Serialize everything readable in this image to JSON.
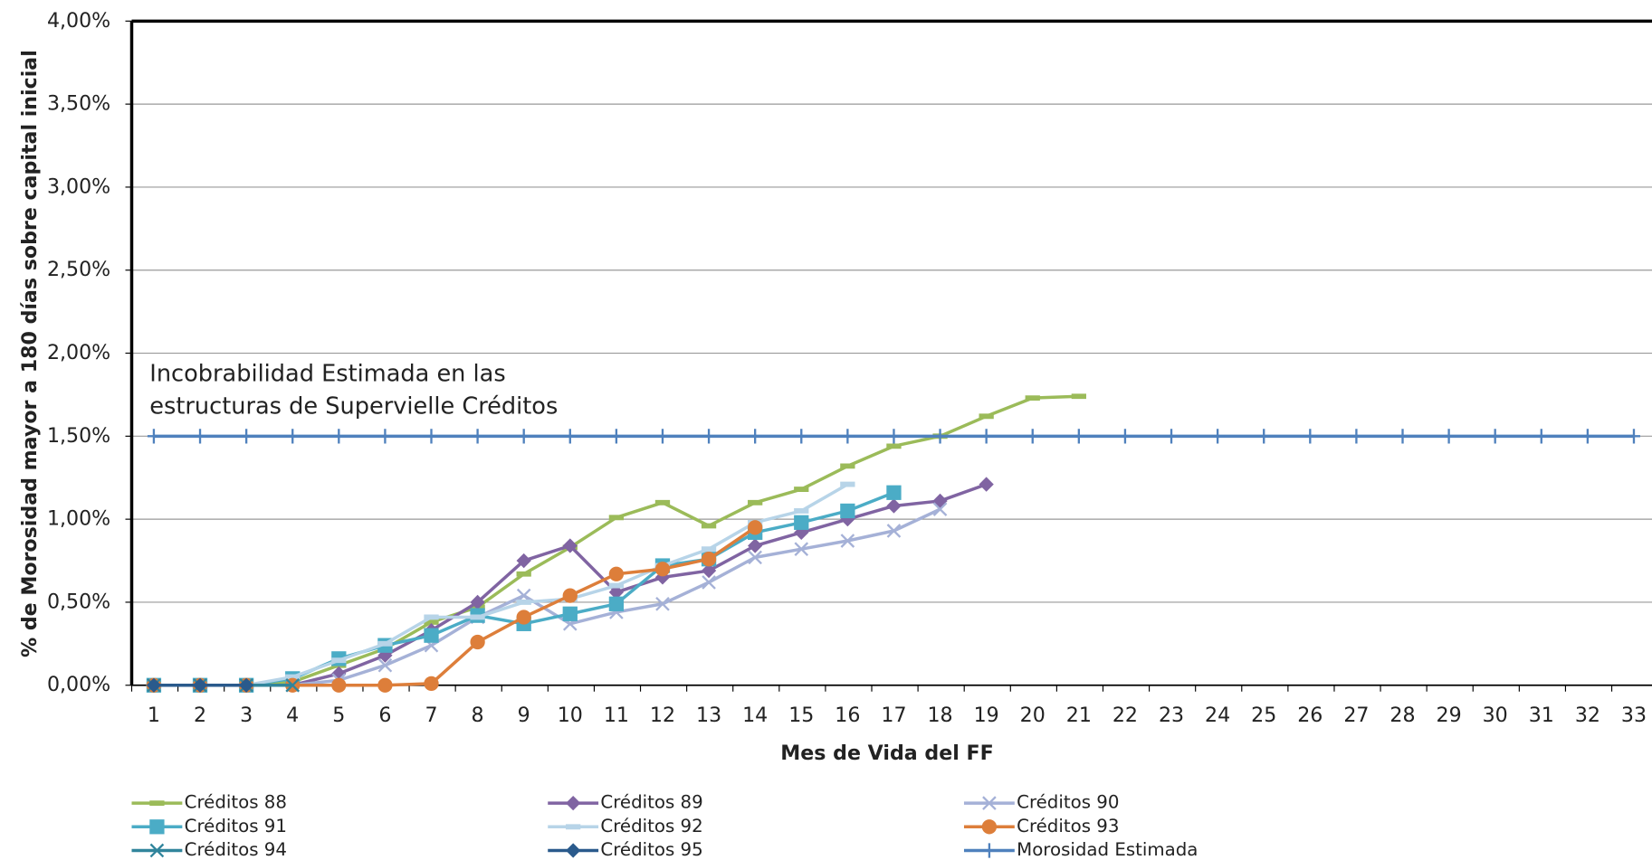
{
  "chart_data": {
    "type": "line",
    "ylabel": "% de Morosidad mayor a 180 días sobre capital inicial",
    "xlabel": "Mes de Vida del FF",
    "annotation": [
      "Incobrabilidad Estimada en las",
      "estructuras de Supervielle Créditos"
    ],
    "categories": [
      1,
      2,
      3,
      4,
      5,
      6,
      7,
      8,
      9,
      10,
      11,
      12,
      13,
      14,
      15,
      16,
      17,
      18,
      19,
      20,
      21,
      22,
      23,
      24,
      25,
      26,
      27,
      28,
      29,
      30,
      31,
      32,
      33
    ],
    "ylim": [
      0,
      4
    ],
    "yticks": [
      {
        "value": 0,
        "label": "0,00%"
      },
      {
        "value": 0.5,
        "label": "0,50%"
      },
      {
        "value": 1,
        "label": "1,00%"
      },
      {
        "value": 1.5,
        "label": "1,50%"
      },
      {
        "value": 2,
        "label": "2,00%"
      },
      {
        "value": 2.5,
        "label": "2,50%"
      },
      {
        "value": 3,
        "label": "3,00%"
      },
      {
        "value": 3.5,
        "label": "3,50%"
      },
      {
        "value": 4,
        "label": "4,00%"
      }
    ],
    "grid": true,
    "series": [
      {
        "name": "Créditos 88",
        "color": "#9bbb59",
        "marker": "dash",
        "values": [
          0,
          0,
          0,
          0.02,
          0.12,
          0.22,
          0.38,
          0.47,
          0.67,
          0.83,
          1.01,
          1.1,
          0.96,
          1.1,
          1.18,
          1.32,
          1.44,
          1.5,
          1.62,
          1.73,
          1.74,
          null,
          null,
          null,
          null,
          null,
          null,
          null,
          null,
          null,
          null,
          null,
          null
        ]
      },
      {
        "name": "Créditos 89",
        "color": "#8064a2",
        "marker": "diamond",
        "values": [
          0,
          0,
          0,
          0,
          0.07,
          0.18,
          0.33,
          0.5,
          0.75,
          0.84,
          0.56,
          0.65,
          0.69,
          0.84,
          0.92,
          1.0,
          1.08,
          1.11,
          1.21,
          null,
          null,
          null,
          null,
          null,
          null,
          null,
          null,
          null,
          null,
          null,
          null,
          null,
          null
        ]
      },
      {
        "name": "Créditos 90",
        "color": "#a5b1d7",
        "marker": "x",
        "values": [
          0,
          0,
          0,
          0,
          0.03,
          0.12,
          0.24,
          0.41,
          0.54,
          0.37,
          0.44,
          0.49,
          0.62,
          0.77,
          0.82,
          0.87,
          0.93,
          1.06,
          null,
          null,
          null,
          null,
          null,
          null,
          null,
          null,
          null,
          null,
          null,
          null,
          null,
          null,
          null
        ]
      },
      {
        "name": "Créditos 91",
        "color": "#4bacc6",
        "marker": "square",
        "values": [
          0,
          0,
          0,
          0.04,
          0.16,
          0.24,
          0.3,
          0.42,
          0.37,
          0.43,
          0.49,
          0.72,
          0.76,
          0.92,
          0.98,
          1.05,
          1.16,
          null,
          null,
          null,
          null,
          null,
          null,
          null,
          null,
          null,
          null,
          null,
          null,
          null,
          null,
          null,
          null
        ]
      },
      {
        "name": "Créditos 92",
        "color": "#b7d4e8",
        "marker": "dash",
        "values": [
          0,
          0,
          0,
          0.05,
          0.15,
          0.25,
          0.41,
          0.41,
          0.5,
          0.52,
          0.6,
          0.72,
          0.82,
          0.98,
          1.05,
          1.21,
          null,
          null,
          null,
          null,
          null,
          null,
          null,
          null,
          null,
          null,
          null,
          null,
          null,
          null,
          null,
          null,
          null
        ]
      },
      {
        "name": "Créditos 93",
        "color": "#dd7e3a",
        "marker": "circle",
        "values": [
          0,
          0,
          0,
          0,
          0,
          0,
          0.01,
          0.26,
          0.41,
          0.54,
          0.67,
          0.7,
          0.76,
          0.95,
          null,
          null,
          null,
          null,
          null,
          null,
          null,
          null,
          null,
          null,
          null,
          null,
          null,
          null,
          null,
          null,
          null,
          null,
          null
        ]
      },
      {
        "name": "Créditos 94",
        "color": "#31859c",
        "marker": "x",
        "values": [
          0,
          0,
          0,
          0,
          null,
          null,
          null,
          null,
          null,
          null,
          null,
          null,
          null,
          null,
          null,
          null,
          null,
          null,
          null,
          null,
          null,
          null,
          null,
          null,
          null,
          null,
          null,
          null,
          null,
          null,
          null,
          null,
          null
        ]
      },
      {
        "name": "Créditos 95",
        "color": "#2a5a8c",
        "marker": "diamond",
        "values": [
          0,
          0,
          0,
          null,
          null,
          null,
          null,
          null,
          null,
          null,
          null,
          null,
          null,
          null,
          null,
          null,
          null,
          null,
          null,
          null,
          null,
          null,
          null,
          null,
          null,
          null,
          null,
          null,
          null,
          null,
          null,
          null,
          null
        ]
      },
      {
        "name": "Morosidad Estimada",
        "color": "#4f81bd",
        "marker": "plus",
        "values": [
          1.5,
          1.5,
          1.5,
          1.5,
          1.5,
          1.5,
          1.5,
          1.5,
          1.5,
          1.5,
          1.5,
          1.5,
          1.5,
          1.5,
          1.5,
          1.5,
          1.5,
          1.5,
          1.5,
          1.5,
          1.5,
          1.5,
          1.5,
          1.5,
          1.5,
          1.5,
          1.5,
          1.5,
          1.5,
          1.5,
          1.5,
          1.5,
          1.5
        ]
      }
    ]
  }
}
